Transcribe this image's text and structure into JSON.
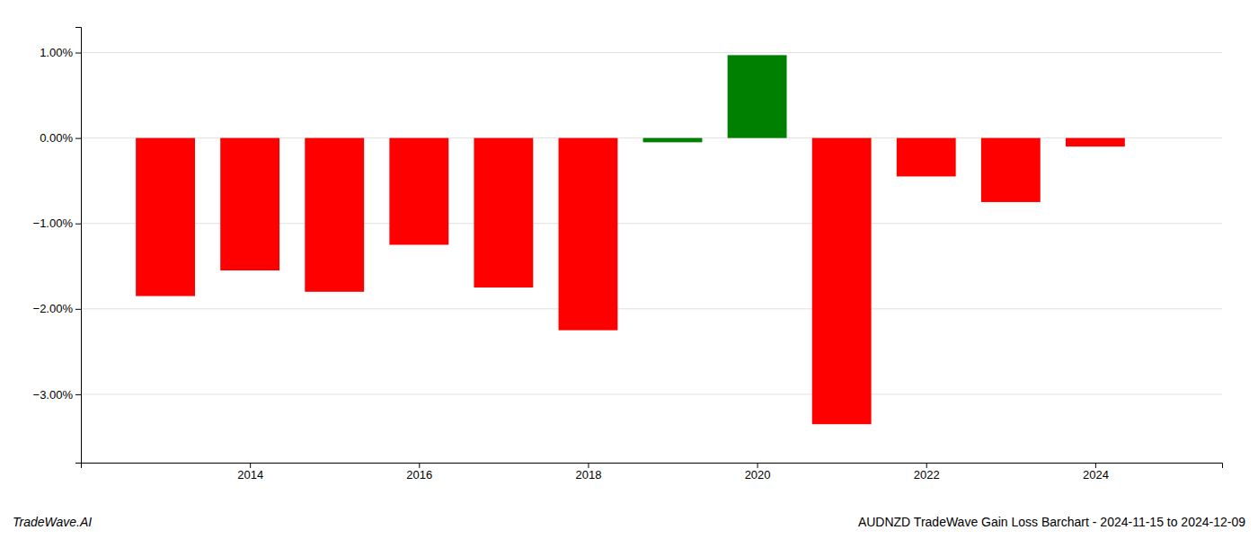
{
  "chart_data": {
    "type": "bar",
    "title": "AUDNZD TradeWave Gain Loss Barchart - 2024-11-15 to 2024-12-09",
    "annotations": [
      "TradeWave.AI"
    ],
    "x": [
      2013,
      2014,
      2015,
      2016,
      2017,
      2018,
      2019,
      2020,
      2021,
      2022,
      2023,
      2024
    ],
    "values": [
      -1.85,
      -1.55,
      -1.8,
      -1.25,
      -1.75,
      -2.25,
      -0.05,
      0.97,
      -3.35,
      -0.45,
      -0.75,
      -0.1
    ],
    "colors": [
      "#ff0000",
      "#ff0000",
      "#ff0000",
      "#ff0000",
      "#ff0000",
      "#ff0000",
      "#008000",
      "#008000",
      "#ff0000",
      "#ff0000",
      "#ff0000",
      "#ff0000"
    ],
    "xlim": [
      2012.0,
      2025.5
    ],
    "xticks": [
      2014,
      2016,
      2018,
      2020,
      2022,
      2024
    ],
    "ylim": [
      -3.8,
      1.3
    ],
    "yticks": [
      {
        "value": -3.0,
        "label": "−3.00%"
      },
      {
        "value": -2.0,
        "label": "−2.00%"
      },
      {
        "value": -1.0,
        "label": "−1.00%"
      },
      {
        "value": 0.0,
        "label": "0.00%"
      },
      {
        "value": 1.0,
        "label": "1.00%"
      }
    ],
    "grid": true
  }
}
